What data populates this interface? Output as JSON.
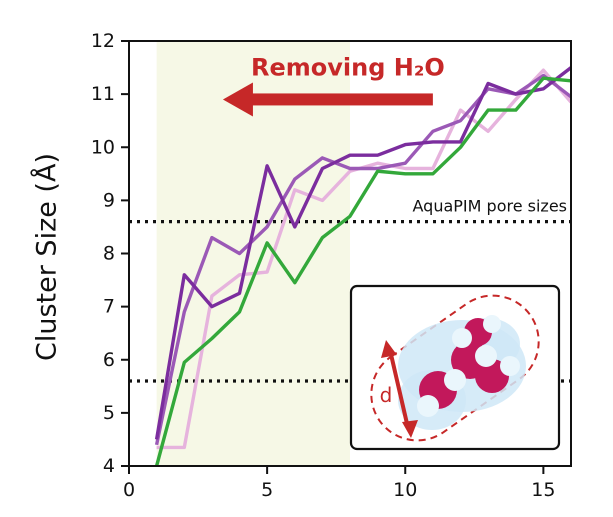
{
  "chart_data": {
    "type": "line",
    "title": "",
    "xlabel": "",
    "ylabel": "Cluster Size (Å)",
    "xlim": [
      0,
      16
    ],
    "ylim": [
      4,
      12
    ],
    "xticks": [
      0,
      5,
      10,
      15
    ],
    "yticks": [
      4,
      5,
      6,
      7,
      8,
      9,
      10,
      11,
      12
    ],
    "grid": false,
    "shaded_region": {
      "x": [
        1,
        8
      ],
      "color": "#f6f8e6"
    },
    "series": [
      {
        "color": "#e6b3dd",
        "x": [
          1,
          2,
          3,
          4,
          5,
          6,
          7,
          8,
          9,
          10,
          11,
          12,
          13,
          14,
          15,
          16
        ],
        "y": [
          4.35,
          4.35,
          7.2,
          7.6,
          7.65,
          9.2,
          9.0,
          9.55,
          9.7,
          9.6,
          9.6,
          10.7,
          10.3,
          10.9,
          11.45,
          10.85
        ]
      },
      {
        "color": "#9b59b6",
        "x": [
          1,
          2,
          3,
          4,
          5,
          6,
          7,
          8,
          9,
          10,
          11,
          12,
          13,
          14,
          15,
          16
        ],
        "y": [
          4.4,
          6.9,
          8.3,
          8.0,
          8.5,
          9.4,
          9.8,
          9.6,
          9.6,
          9.7,
          10.3,
          10.5,
          11.1,
          11.0,
          11.35,
          10.95
        ]
      },
      {
        "color": "#7b2d9e",
        "x": [
          1,
          2,
          3,
          4,
          5,
          6,
          7,
          8,
          9,
          10,
          11,
          12,
          13,
          14,
          15,
          16
        ],
        "y": [
          4.5,
          7.6,
          7.0,
          7.25,
          9.65,
          8.5,
          9.6,
          9.85,
          9.85,
          10.05,
          10.1,
          10.1,
          11.2,
          11.0,
          11.1,
          11.5
        ]
      },
      {
        "color": "#33a83a",
        "x": [
          1,
          2,
          3,
          4,
          5,
          6,
          7,
          8,
          9,
          10,
          11,
          12,
          13,
          14,
          15,
          16
        ],
        "y": [
          4.0,
          5.95,
          6.4,
          6.9,
          8.2,
          7.45,
          8.3,
          8.7,
          9.55,
          9.5,
          9.5,
          10.0,
          10.7,
          10.7,
          11.3,
          11.25
        ]
      }
    ],
    "reference_lines": [
      {
        "y": 8.6,
        "style": "dotted",
        "color": "#111111",
        "label": "AquaPIM pore sizes"
      },
      {
        "y": 5.6,
        "style": "dotted",
        "color": "#111111"
      }
    ],
    "annotation": {
      "text": "Removing H₂O",
      "color": "#c62828",
      "arrow_from_x": 11.0,
      "arrow_to_x": 3.4,
      "arrow_y": 10.9
    },
    "inset": {
      "label": "d",
      "accent_color": "#c62828"
    }
  }
}
